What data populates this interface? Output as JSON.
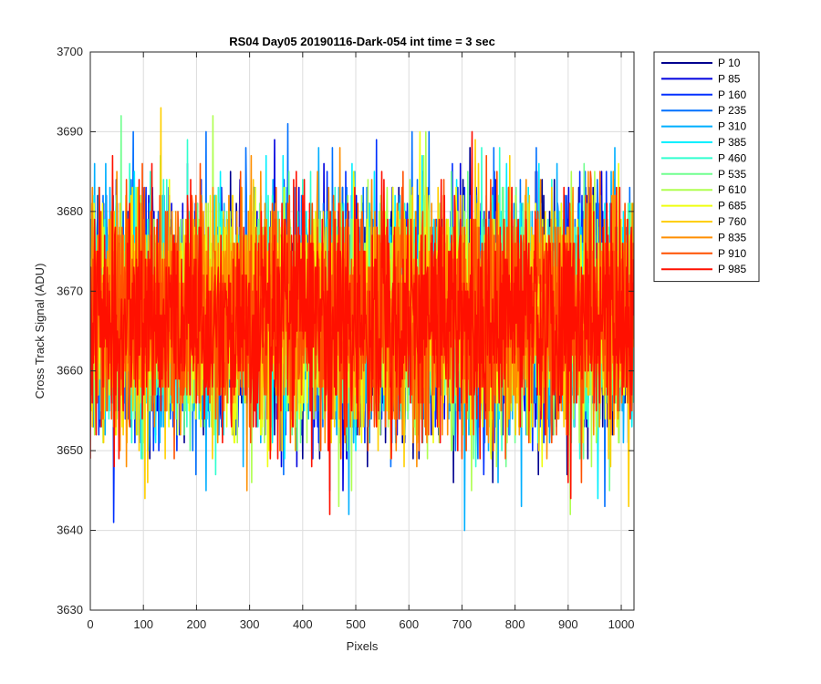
{
  "chart_data": {
    "type": "line",
    "title": "RS04 Day05 20190116-Dark-054 int time = 3 sec",
    "xlabel": "Pixels",
    "ylabel": "Cross Track Signal (ADU)",
    "xlim": [
      0,
      1024
    ],
    "ylim": [
      3630,
      3700
    ],
    "xticks": [
      0,
      100,
      200,
      300,
      400,
      500,
      600,
      700,
      800,
      900,
      1000
    ],
    "yticks": [
      3630,
      3640,
      3650,
      3660,
      3670,
      3680,
      3690,
      3700
    ],
    "grid": true,
    "legend_position": "outside-top-right",
    "noise_model": {
      "mean": 3667,
      "std": 7,
      "min": 3639,
      "max": 3698,
      "points_per_series": 1024
    },
    "series": [
      {
        "name": "P 10",
        "color": "#00008f"
      },
      {
        "name": "P 85",
        "color": "#0000df"
      },
      {
        "name": "P 160",
        "color": "#0030ff"
      },
      {
        "name": "P 235",
        "color": "#0070ff"
      },
      {
        "name": "P 310",
        "color": "#00afff"
      },
      {
        "name": "P 385",
        "color": "#00efff"
      },
      {
        "name": "P 460",
        "color": "#30ffcf"
      },
      {
        "name": "P 535",
        "color": "#70ff8f"
      },
      {
        "name": "P 610",
        "color": "#afff50"
      },
      {
        "name": "P 685",
        "color": "#efff10"
      },
      {
        "name": "P 760",
        "color": "#ffcf00"
      },
      {
        "name": "P 835",
        "color": "#ff8f00"
      },
      {
        "name": "P 910",
        "color": "#ff5000"
      },
      {
        "name": "P 985",
        "color": "#ff1000"
      }
    ]
  }
}
